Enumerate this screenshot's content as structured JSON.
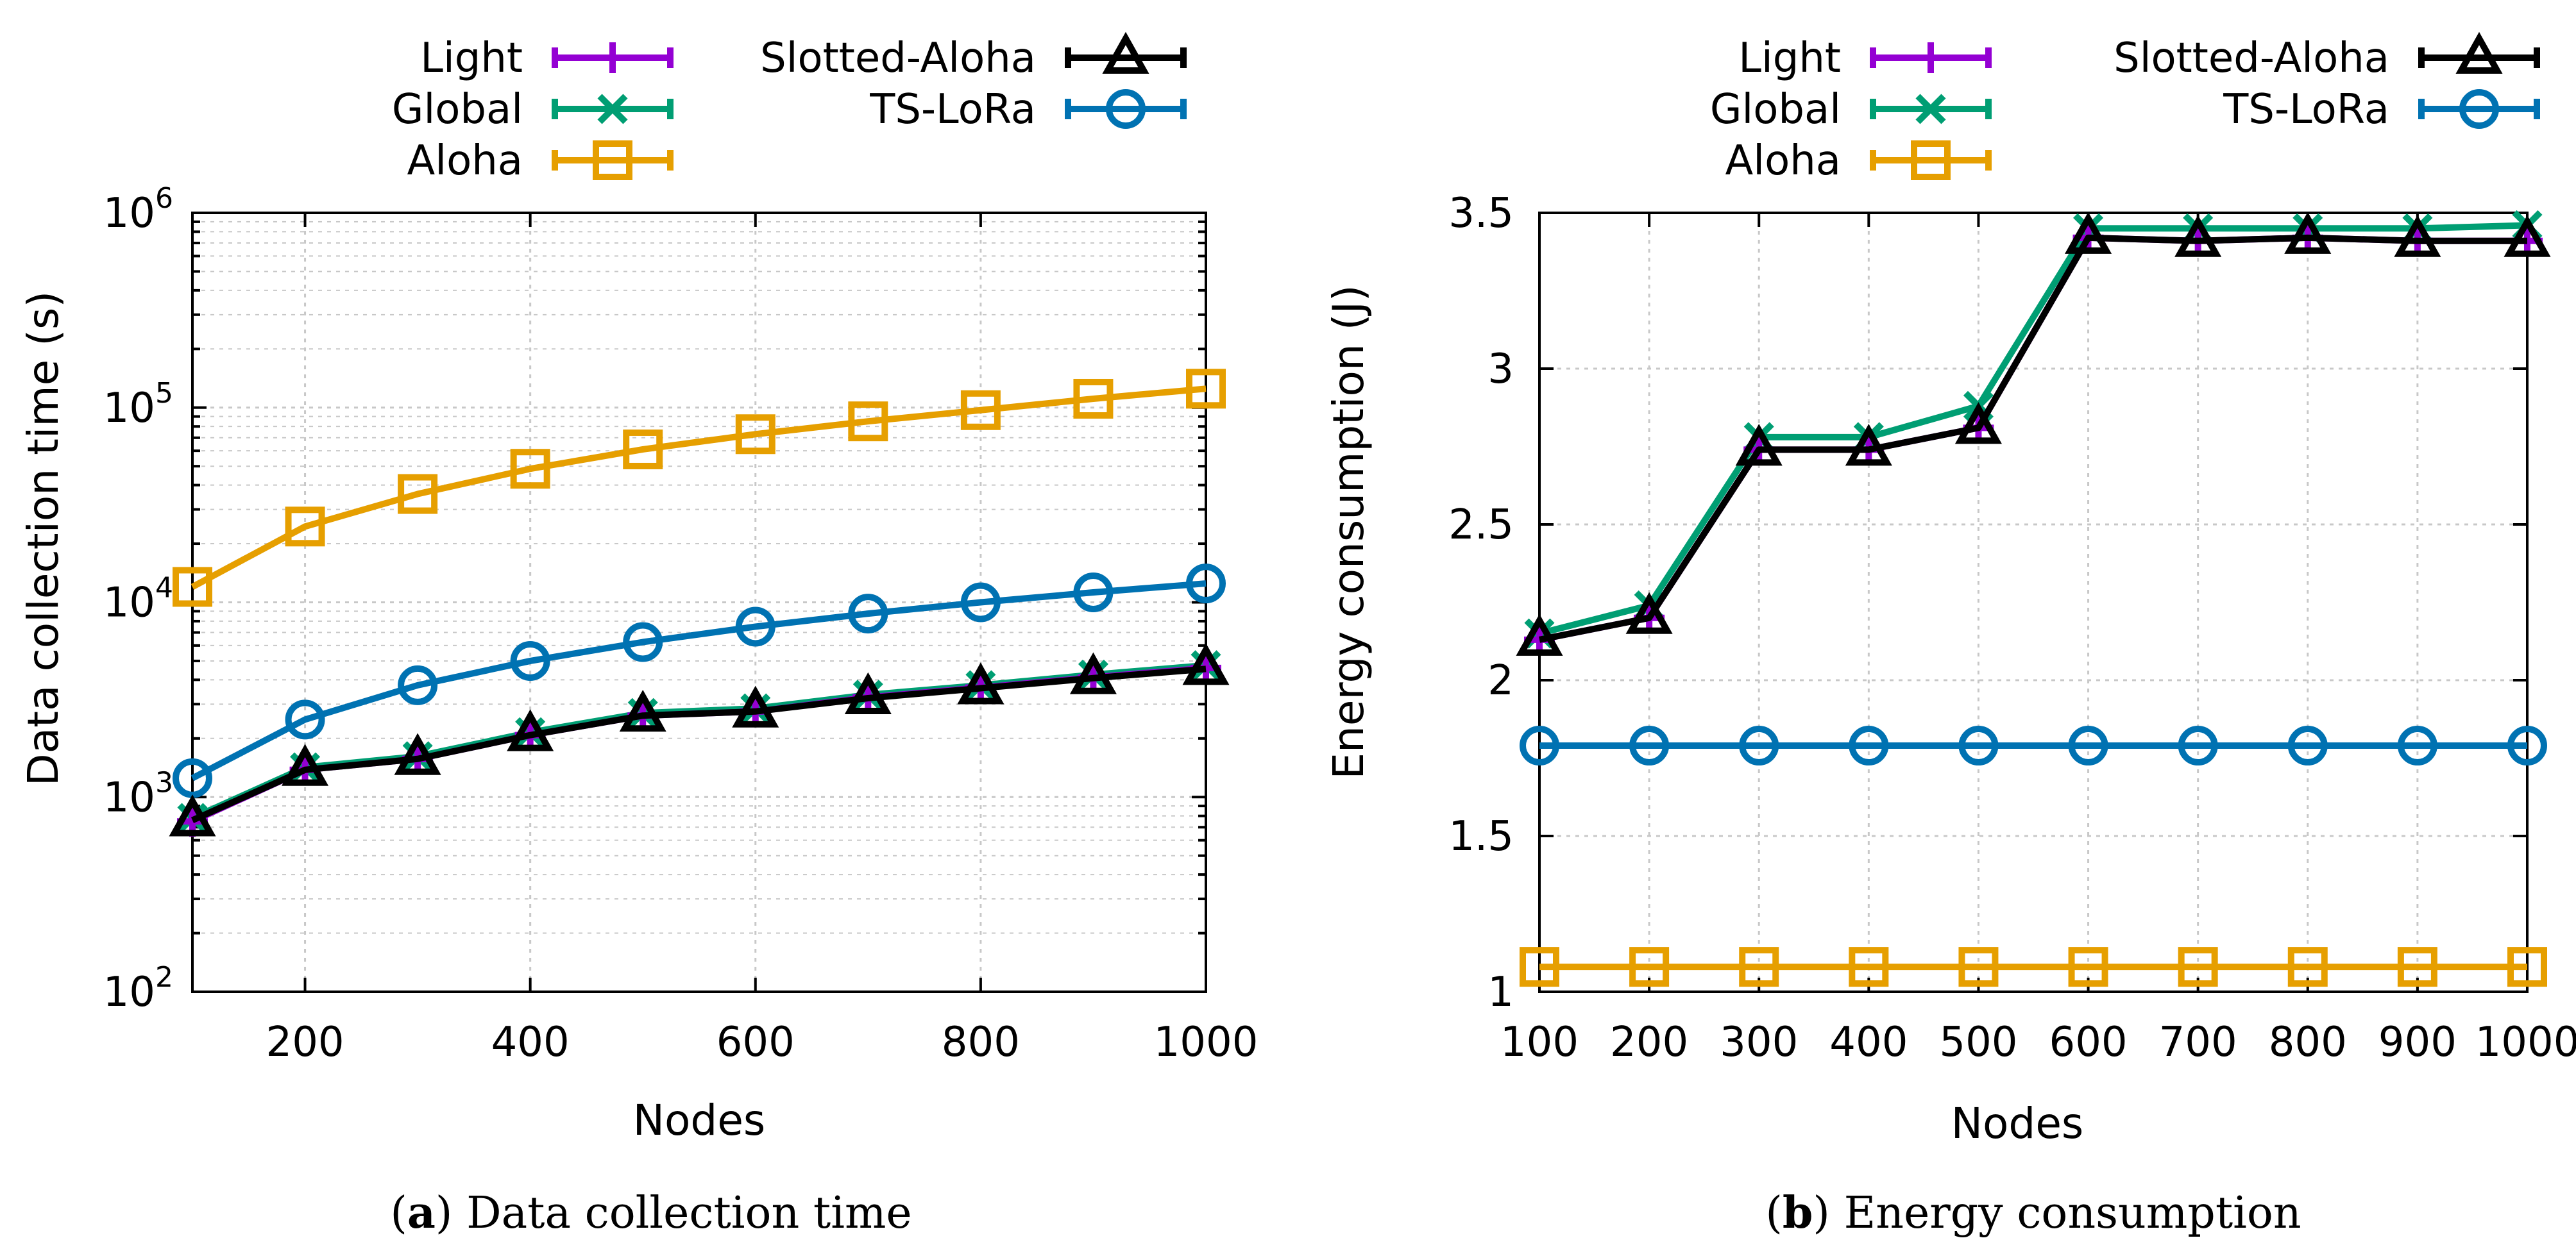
{
  "colors": {
    "Light": "#9400d3",
    "Global": "#009e73",
    "Aloha": "#e69f00",
    "Slotted-Aloha": "#000000",
    "TS-LoRa": "#0072b2",
    "grid": "#c8c8c8",
    "axis": "#000000"
  },
  "chart_data": [
    {
      "id": "a",
      "type": "line",
      "title": "",
      "caption_label": "a",
      "caption_text": "Data collection time",
      "xlabel": "Nodes",
      "ylabel": "Data collection time (s)",
      "yscale": "log",
      "xlim": [
        100,
        1000
      ],
      "ylim": [
        100,
        1000000
      ],
      "xticks": [
        200,
        400,
        600,
        800,
        1000
      ],
      "yticks": [
        {
          "value": 100,
          "base": "10",
          "exp": "2"
        },
        {
          "value": 1000,
          "base": "10",
          "exp": "3"
        },
        {
          "value": 10000,
          "base": "10",
          "exp": "4"
        },
        {
          "value": 100000,
          "base": "10",
          "exp": "5"
        },
        {
          "value": 1000000,
          "base": "10",
          "exp": "6"
        }
      ],
      "grid": true,
      "legend": "top, outside",
      "x": [
        100,
        200,
        300,
        400,
        500,
        600,
        700,
        800,
        900,
        1000
      ],
      "series": [
        {
          "name": "Light",
          "marker": "plus",
          "values": [
            750,
            1380,
            1570,
            2080,
            2620,
            2750,
            3250,
            3650,
            4120,
            4600
          ]
        },
        {
          "name": "Global",
          "marker": "cross",
          "values": [
            780,
            1420,
            1620,
            2150,
            2700,
            2850,
            3350,
            3750,
            4250,
            4750
          ]
        },
        {
          "name": "Aloha",
          "marker": "square",
          "values": [
            12000,
            24500,
            36000,
            48500,
            61000,
            73000,
            85000,
            97000,
            111000,
            125000
          ]
        },
        {
          "name": "Slotted-Aloha",
          "marker": "triangle",
          "values": [
            760,
            1380,
            1570,
            2080,
            2620,
            2750,
            3220,
            3620,
            4080,
            4550
          ]
        },
        {
          "name": "TS-LoRa",
          "marker": "circle",
          "values": [
            1250,
            2500,
            3750,
            5000,
            6250,
            7500,
            8750,
            10000,
            11250,
            12500
          ]
        }
      ]
    },
    {
      "id": "b",
      "type": "line",
      "title": "",
      "caption_label": "b",
      "caption_text": "Energy consumption",
      "xlabel": "Nodes",
      "ylabel": "Energy consumption (J)",
      "yscale": "linear",
      "xlim": [
        100,
        1000
      ],
      "ylim": [
        1,
        3.5
      ],
      "xticks": [
        100,
        200,
        300,
        400,
        500,
        600,
        700,
        800,
        900,
        1000
      ],
      "yticks": [
        {
          "value": 1,
          "label": "1"
        },
        {
          "value": 1.5,
          "label": "1.5"
        },
        {
          "value": 2,
          "label": "2"
        },
        {
          "value": 2.5,
          "label": "2.5"
        },
        {
          "value": 3,
          "label": "3"
        },
        {
          "value": 3.5,
          "label": "3.5"
        }
      ],
      "grid": true,
      "legend": "top, outside",
      "x": [
        100,
        200,
        300,
        400,
        500,
        600,
        700,
        800,
        900,
        1000
      ],
      "series": [
        {
          "name": "Light",
          "marker": "plus",
          "values": [
            2.13,
            2.2,
            2.74,
            2.74,
            2.81,
            3.42,
            3.41,
            3.42,
            3.41,
            3.41
          ]
        },
        {
          "name": "Global",
          "marker": "cross",
          "values": [
            2.15,
            2.24,
            2.78,
            2.78,
            2.88,
            3.45,
            3.45,
            3.45,
            3.45,
            3.46
          ]
        },
        {
          "name": "Aloha",
          "marker": "square",
          "values": [
            1.08,
            1.08,
            1.08,
            1.08,
            1.08,
            1.08,
            1.08,
            1.08,
            1.08,
            1.08
          ]
        },
        {
          "name": "Slotted-Aloha",
          "marker": "triangle",
          "values": [
            2.13,
            2.2,
            2.74,
            2.74,
            2.81,
            3.42,
            3.41,
            3.42,
            3.41,
            3.41
          ]
        },
        {
          "name": "TS-LoRa",
          "marker": "circle",
          "values": [
            1.79,
            1.79,
            1.79,
            1.79,
            1.79,
            1.79,
            1.79,
            1.79,
            1.79,
            1.79
          ]
        }
      ]
    }
  ]
}
